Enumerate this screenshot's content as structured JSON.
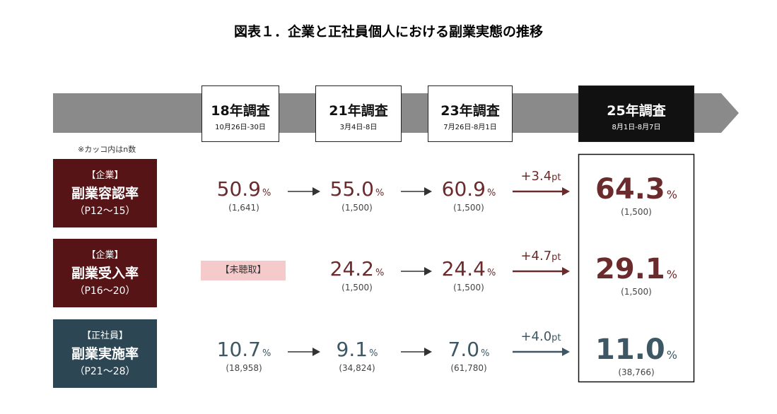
{
  "title": "図表１．企業と正社員個人における副業実態の推移",
  "note": "※カッコ内はn数",
  "surveys": [
    {
      "label": "18年調査",
      "dates": "10月26日-30日"
    },
    {
      "label": "21年調査",
      "dates": "3月4日-8日"
    },
    {
      "label": "23年調査",
      "dates": "7月26日-8月1日"
    },
    {
      "label": "25年調査",
      "dates": "8月1日-8月7日"
    }
  ],
  "rows": [
    {
      "tag": "【企業】",
      "name": "副業容認率",
      "pages": "（P12～15）",
      "cells": [
        {
          "value": "50.9",
          "unit": "%",
          "n": "(1,641)"
        },
        {
          "value": "55.0",
          "unit": "%",
          "n": "(1,500)"
        },
        {
          "value": "60.9",
          "unit": "%",
          "n": "(1,500)"
        },
        {
          "value": "64.3",
          "unit": "%",
          "n": "(1,500)"
        }
      ],
      "change": "+3.4",
      "change_unit": "pt"
    },
    {
      "tag": "【企業】",
      "name": "副業受入率",
      "pages": "（P16～20）",
      "cells": [
        {
          "label": "【未聴取】"
        },
        {
          "value": "24.2",
          "unit": "%",
          "n": "(1,500)"
        },
        {
          "value": "24.4",
          "unit": "%",
          "n": "(1,500)"
        },
        {
          "value": "29.1",
          "unit": "%",
          "n": "(1,500)"
        }
      ],
      "change": "+4.7",
      "change_unit": "pt"
    },
    {
      "tag": "【正社員】",
      "name": "副業実施率",
      "pages": "（P21～28）",
      "cells": [
        {
          "value": "10.7",
          "unit": "%",
          "n": "(18,958)"
        },
        {
          "value": "9.1",
          "unit": "%",
          "n": "(34,824)"
        },
        {
          "value": "7.0",
          "unit": "%",
          "n": "(61,780)"
        },
        {
          "value": "11.0",
          "unit": "%",
          "n": "(38,766)"
        }
      ],
      "change": "+4.0",
      "change_unit": "pt"
    }
  ]
}
